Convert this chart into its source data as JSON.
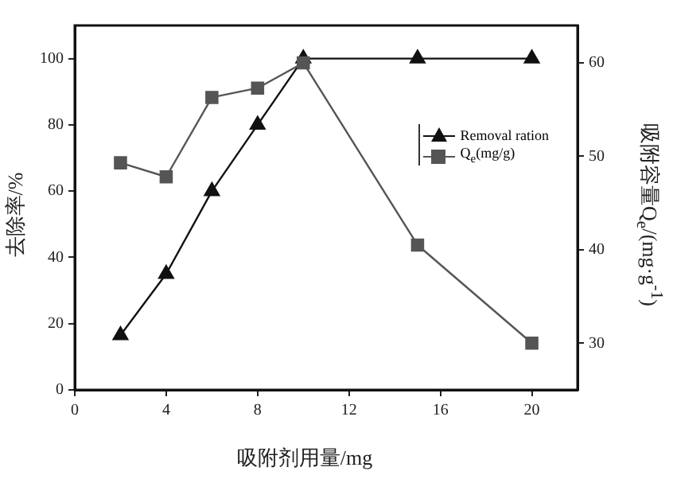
{
  "chart_data": {
    "type": "line",
    "xlabel": "吸附剂用量/mg",
    "ylabel": "去除率/%",
    "y2label": "吸附容量Q$_{e}$/(mg·g$^{-1}$)",
    "xlim": [
      0,
      22
    ],
    "xticks": [
      0,
      4,
      8,
      12,
      16,
      20
    ],
    "ylim": [
      0,
      110
    ],
    "yticks": [
      0,
      20,
      40,
      60,
      80,
      100
    ],
    "y2lim": [
      25,
      64
    ],
    "y2ticks": [
      30,
      40,
      50,
      60
    ],
    "grid": false,
    "legend": "right",
    "line_style": "solid",
    "series": [
      {
        "name": "Removal ration",
        "color": "#111111",
        "marker": "triangle",
        "x": [
          2,
          4,
          6,
          8,
          10,
          15,
          20
        ],
        "values": [
          16.5,
          35,
          60,
          80,
          100,
          100,
          100
        ]
      },
      {
        "name": "Q$_{e}$(mg/g)",
        "color": "#555555",
        "marker": "square",
        "axis": "y2",
        "x": [
          2,
          4,
          6,
          8,
          10,
          15,
          20
        ],
        "values": [
          49.3,
          47.8,
          56.3,
          57.3,
          60,
          40.5,
          30
        ]
      }
    ]
  }
}
